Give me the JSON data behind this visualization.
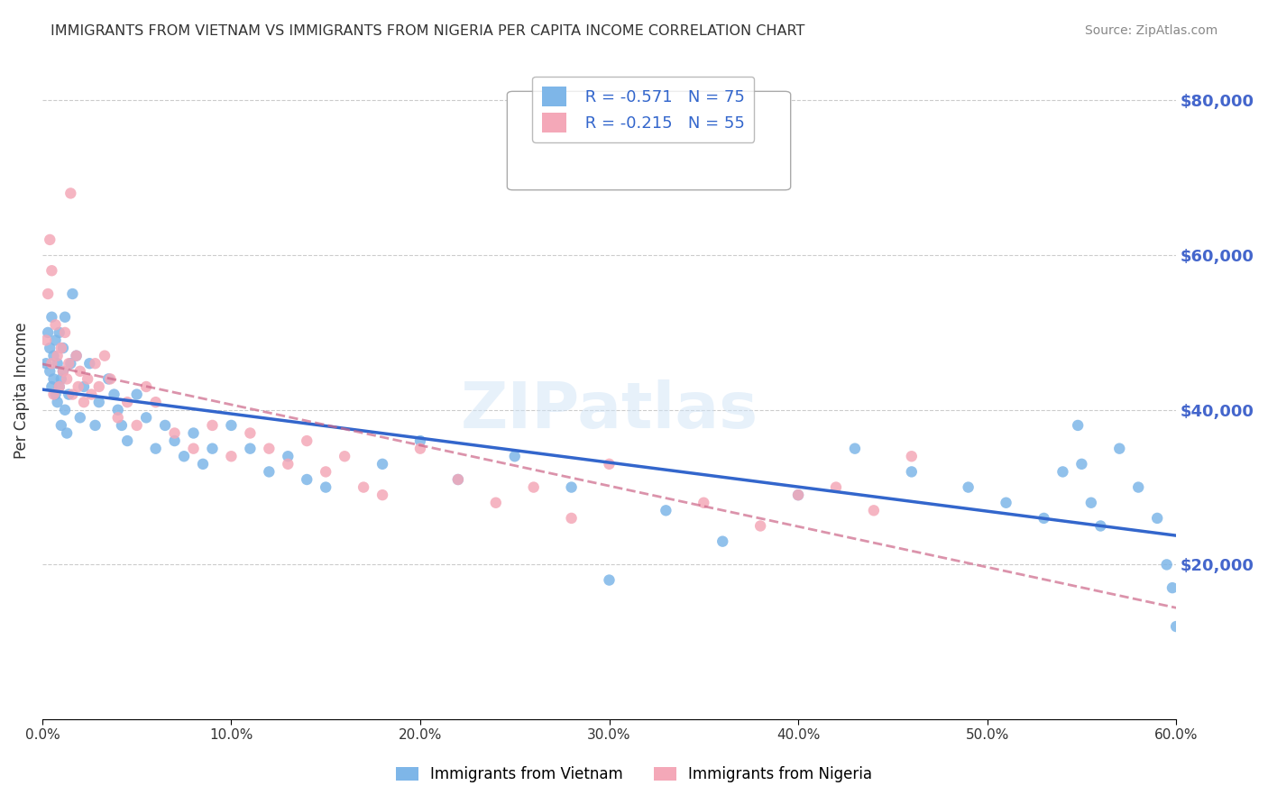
{
  "title": "IMMIGRANTS FROM VIETNAM VS IMMIGRANTS FROM NIGERIA PER CAPITA INCOME CORRELATION CHART",
  "source": "Source: ZipAtlas.com",
  "xlabel_legend1": "Immigrants from Vietnam",
  "xlabel_legend2": "Immigrants from Nigeria",
  "ylabel": "Per Capita Income",
  "r_vietnam": -0.571,
  "n_vietnam": 75,
  "r_nigeria": -0.215,
  "n_nigeria": 55,
  "color_vietnam": "#7EB6E8",
  "color_nigeria": "#F4A8B8",
  "color_trendline_vietnam": "#3366CC",
  "color_trendline_nigeria": "#CC6688",
  "color_ytick": "#4466CC",
  "color_grid": "#CCCCCC",
  "watermark": "ZIPatlas",
  "vietnam_x": [
    0.002,
    0.003,
    0.004,
    0.004,
    0.005,
    0.005,
    0.006,
    0.006,
    0.007,
    0.007,
    0.008,
    0.008,
    0.009,
    0.009,
    0.01,
    0.01,
    0.011,
    0.011,
    0.012,
    0.012,
    0.013,
    0.014,
    0.015,
    0.016,
    0.018,
    0.02,
    0.022,
    0.025,
    0.028,
    0.03,
    0.035,
    0.038,
    0.04,
    0.042,
    0.045,
    0.05,
    0.055,
    0.06,
    0.065,
    0.07,
    0.075,
    0.08,
    0.085,
    0.09,
    0.1,
    0.11,
    0.12,
    0.13,
    0.14,
    0.15,
    0.18,
    0.2,
    0.22,
    0.25,
    0.28,
    0.3,
    0.33,
    0.36,
    0.4,
    0.43,
    0.46,
    0.49,
    0.51,
    0.53,
    0.54,
    0.548,
    0.55,
    0.555,
    0.56,
    0.57,
    0.58,
    0.59,
    0.595,
    0.598,
    0.6
  ],
  "vietnam_y": [
    46000,
    50000,
    45000,
    48000,
    43000,
    52000,
    47000,
    44000,
    42000,
    49000,
    41000,
    46000,
    43000,
    50000,
    38000,
    44000,
    48000,
    45000,
    52000,
    40000,
    37000,
    42000,
    46000,
    55000,
    47000,
    39000,
    43000,
    46000,
    38000,
    41000,
    44000,
    42000,
    40000,
    38000,
    36000,
    42000,
    39000,
    35000,
    38000,
    36000,
    34000,
    37000,
    33000,
    35000,
    38000,
    35000,
    32000,
    34000,
    31000,
    30000,
    33000,
    36000,
    31000,
    34000,
    30000,
    18000,
    27000,
    23000,
    29000,
    35000,
    32000,
    30000,
    28000,
    26000,
    32000,
    38000,
    33000,
    28000,
    25000,
    35000,
    30000,
    26000,
    20000,
    17000,
    12000
  ],
  "nigeria_x": [
    0.002,
    0.003,
    0.004,
    0.005,
    0.005,
    0.006,
    0.007,
    0.008,
    0.009,
    0.01,
    0.011,
    0.012,
    0.013,
    0.014,
    0.015,
    0.016,
    0.018,
    0.019,
    0.02,
    0.022,
    0.024,
    0.026,
    0.028,
    0.03,
    0.033,
    0.036,
    0.04,
    0.045,
    0.05,
    0.055,
    0.06,
    0.07,
    0.08,
    0.09,
    0.1,
    0.11,
    0.12,
    0.13,
    0.14,
    0.15,
    0.16,
    0.17,
    0.18,
    0.2,
    0.22,
    0.24,
    0.26,
    0.28,
    0.3,
    0.35,
    0.38,
    0.4,
    0.42,
    0.44,
    0.46
  ],
  "nigeria_y": [
    49000,
    55000,
    62000,
    46000,
    58000,
    42000,
    51000,
    47000,
    43000,
    48000,
    45000,
    50000,
    44000,
    46000,
    68000,
    42000,
    47000,
    43000,
    45000,
    41000,
    44000,
    42000,
    46000,
    43000,
    47000,
    44000,
    39000,
    41000,
    38000,
    43000,
    41000,
    37000,
    35000,
    38000,
    34000,
    37000,
    35000,
    33000,
    36000,
    32000,
    34000,
    30000,
    29000,
    35000,
    31000,
    28000,
    30000,
    26000,
    33000,
    28000,
    25000,
    29000,
    30000,
    27000,
    34000
  ],
  "xlim": [
    0.0,
    0.6
  ],
  "ylim": [
    0,
    85000
  ],
  "yticks": [
    0,
    20000,
    40000,
    60000,
    80000
  ],
  "ytick_labels": [
    "",
    "$20,000",
    "$40,000",
    "$60,000",
    "$80,000"
  ],
  "xtick_labels": [
    "0.0%",
    "10.0%",
    "20.0%",
    "30.0%",
    "40.0%",
    "50.0%",
    "60.0%"
  ],
  "xticks": [
    0.0,
    0.1,
    0.2,
    0.3,
    0.4,
    0.5,
    0.6
  ]
}
